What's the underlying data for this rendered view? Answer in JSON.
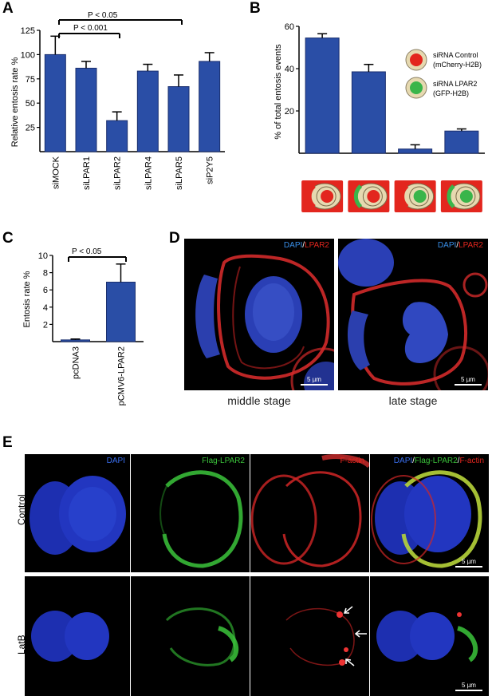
{
  "panel_labels": {
    "a": "A",
    "b": "B",
    "c": "C",
    "d": "D",
    "e": "E"
  },
  "panelA": {
    "ylabel": "Relative entosis rate %",
    "yticks": [
      "25",
      "50",
      "75",
      "100",
      "125"
    ],
    "sig1": "P < 0.05",
    "sig2": "P < 0.001"
  },
  "panelB": {
    "ylabel": "% of total entosis events",
    "yticks": [
      "20",
      "40",
      "60"
    ],
    "legend": [
      {
        "label1": "siRNA Control",
        "label2": "(mCherry-H2B)"
      },
      {
        "label1": "siRNA LPAR2",
        "label2": "(GFP-H2B)"
      }
    ]
  },
  "panelC": {
    "ylabel": "Entosis rate %",
    "yticks": [
      "2",
      "4",
      "6",
      "8",
      "10"
    ],
    "sig": "P < 0.05"
  },
  "panelD": {
    "label_dapi": "DAPI",
    "label_sep": "/",
    "label_lpar2": "LPAR2",
    "scale": "5 µm",
    "caption_middle": "middle stage",
    "caption_late": "late stage"
  },
  "panelE": {
    "col_dapi": "DAPI",
    "col_flag": "Flag-LPAR2",
    "col_factin": "F-actin",
    "merge_dapi": "DAPI",
    "merge_sep1": "/",
    "merge_flag": "Flag-LPAR2",
    "merge_sep2": "/",
    "merge_factin": "F-actin",
    "row_control": "Control",
    "row_latb": "LatB",
    "scale": "5 µm"
  },
  "colors": {
    "bar": "#2a4ea6",
    "red": "#e3261e",
    "green": "#39b54a",
    "beige": "#e6d9b0",
    "blue": "#3a5bd6"
  },
  "chart_data": [
    {
      "type": "bar",
      "categories": [
        "siMOCK",
        "siLPAR1",
        "siLPAR2",
        "siLPAR4",
        "siLPAR5",
        "siP2Y5"
      ],
      "values": [
        100,
        86,
        32,
        83,
        67,
        93
      ],
      "errors": [
        19,
        7,
        9,
        7,
        12,
        9
      ],
      "ylabel": "Relative entosis rate %",
      "ylim": [
        0,
        125
      ],
      "yticks": [
        25,
        50,
        75,
        100,
        125
      ]
    },
    {
      "type": "bar",
      "categories": [
        "control-outer/control-inner",
        "LPAR2-outer/control-inner",
        "control-outer/LPAR2-inner",
        "LPAR2-outer/LPAR2-inner"
      ],
      "values": [
        54.5,
        38.5,
        2,
        10.5
      ],
      "errors": [
        2,
        3.5,
        2,
        1
      ],
      "ylabel": "% of total entosis events",
      "ylim": [
        0,
        60
      ],
      "yticks": [
        20,
        40,
        60
      ]
    },
    {
      "type": "bar",
      "categories": [
        "pcDNA3",
        "pCMV6-LPAR2"
      ],
      "values": [
        0.2,
        6.9
      ],
      "errors": [
        0.1,
        2.1
      ],
      "ylabel": "Entosis rate %",
      "ylim": [
        0,
        10
      ],
      "yticks": [
        2,
        4,
        6,
        8,
        10
      ]
    }
  ]
}
